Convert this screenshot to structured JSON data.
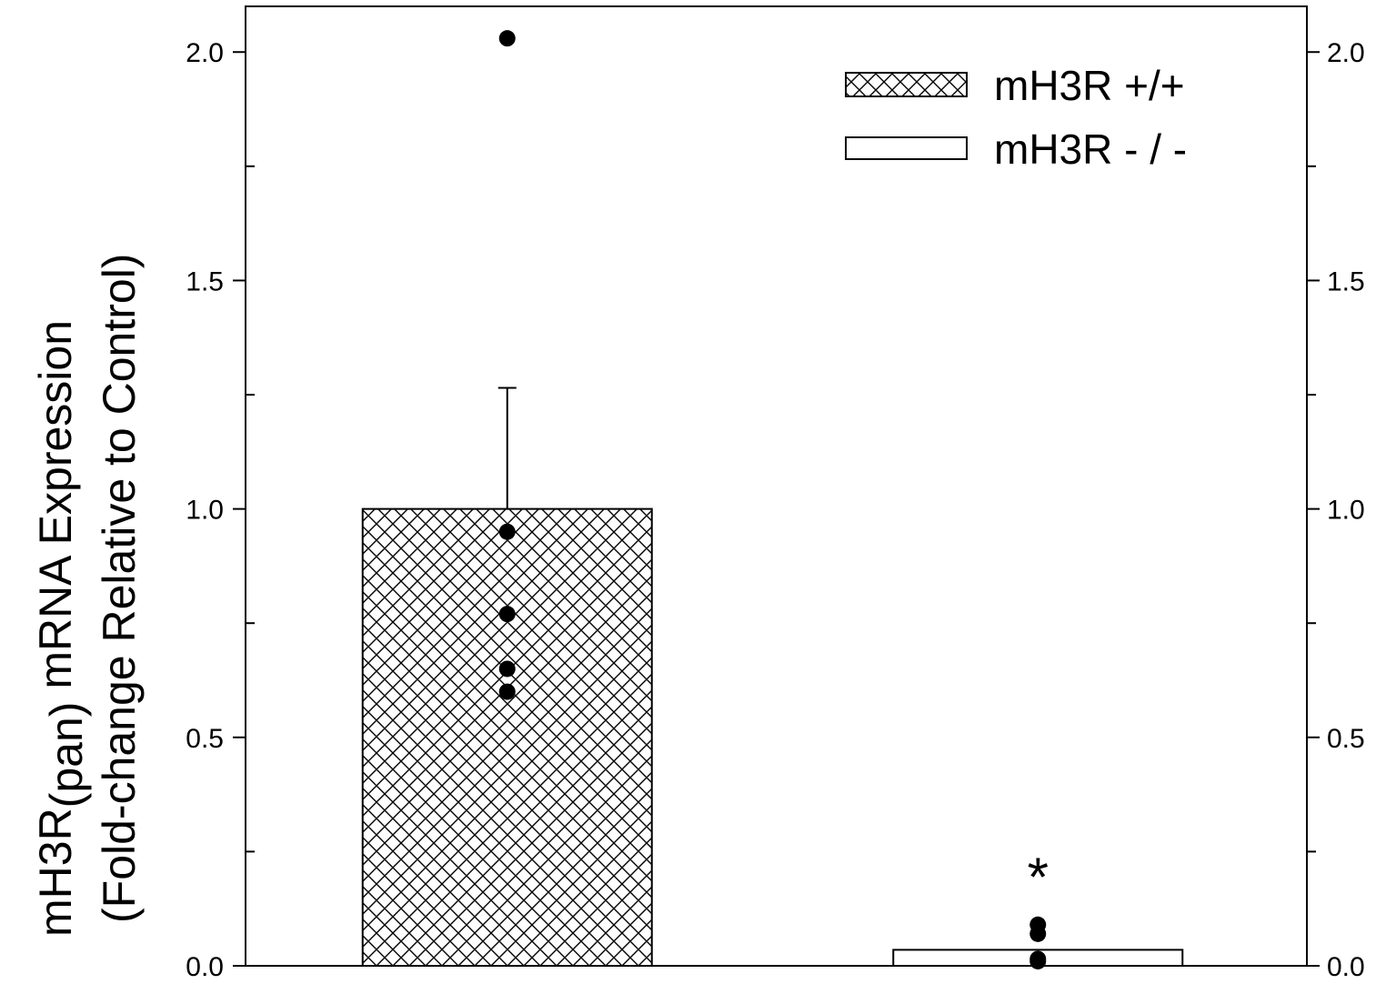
{
  "chart_data": {
    "type": "bar",
    "categories": [
      "mH3R +/+",
      "mH3R - / -"
    ],
    "series": [
      {
        "name": "mH3R +/+",
        "value": 1.0,
        "error": 0.265,
        "pattern": "crosshatch",
        "points": [
          2.03,
          0.95,
          0.77,
          0.65,
          0.6
        ]
      },
      {
        "name": "mH3R - / -",
        "value": 0.035,
        "error": 0,
        "pattern": "none",
        "points": [
          0.09,
          0.07,
          0.015,
          0.01
        ]
      }
    ],
    "ylabel_line1": "mH3R",
    "ylabel_sub": "(pan)",
    "ylabel_line1_rest": " mRNA Expression",
    "ylabel_line2": "(Fold-change Relative to Control)",
    "ylim": [
      0,
      2.1
    ],
    "yticks": [
      "0.0",
      "0.5",
      "1.0",
      "1.5",
      "2.0"
    ],
    "ytick_values": [
      0,
      0.5,
      1.0,
      1.5,
      2.0
    ],
    "minor_ticks": [
      0.25,
      0.75,
      1.25,
      1.75
    ],
    "right_axis": true,
    "grid": false,
    "legend_position": "top-right",
    "annotations": [
      {
        "text": "*",
        "category": 1
      }
    ]
  }
}
